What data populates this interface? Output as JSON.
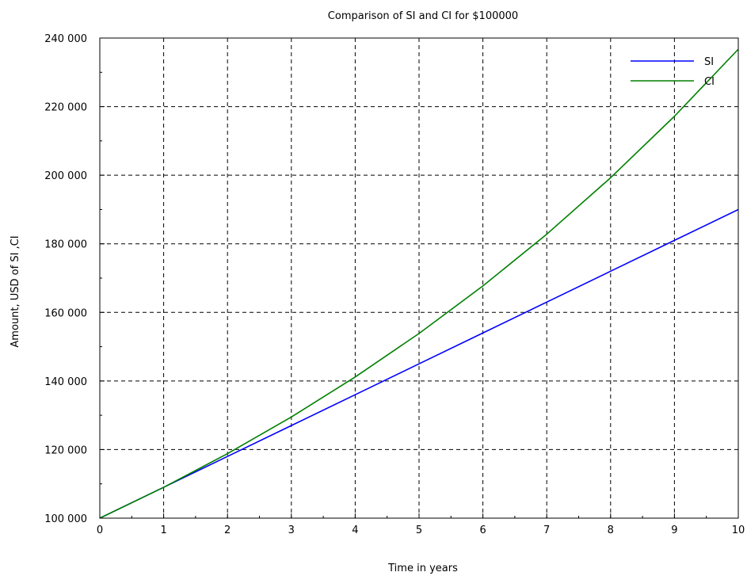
{
  "chart_data": {
    "type": "line",
    "title": "Comparison of SI and CI for $100000",
    "xlabel": "Time in years",
    "ylabel": "Amount, USD of SI ,CI",
    "xlim": [
      0,
      10
    ],
    "ylim": [
      100000,
      240000
    ],
    "x_ticks": [
      "0",
      "1",
      "2",
      "3",
      "4",
      "5",
      "6",
      "7",
      "8",
      "9",
      "10"
    ],
    "y_ticks": [
      "100 000",
      "120 000",
      "140 000",
      "160 000",
      "180 000",
      "200 000",
      "220 000",
      "240 000"
    ],
    "grid": true,
    "grid_style": "dashed",
    "legend_position": "top-right",
    "x": [
      0,
      1,
      2,
      3,
      4,
      5,
      6,
      7,
      8,
      9,
      10
    ],
    "series": [
      {
        "name": "SI",
        "color": "#0000ff",
        "values": [
          100000,
          109000,
          118000,
          127000,
          136000,
          145000,
          154000,
          163000,
          172000,
          181000,
          190000
        ]
      },
      {
        "name": "CI",
        "color": "#008000",
        "values": [
          100000,
          109000,
          118810,
          129503,
          141158,
          153862,
          167710,
          182804,
          199256,
          217189,
          236736
        ]
      }
    ]
  }
}
